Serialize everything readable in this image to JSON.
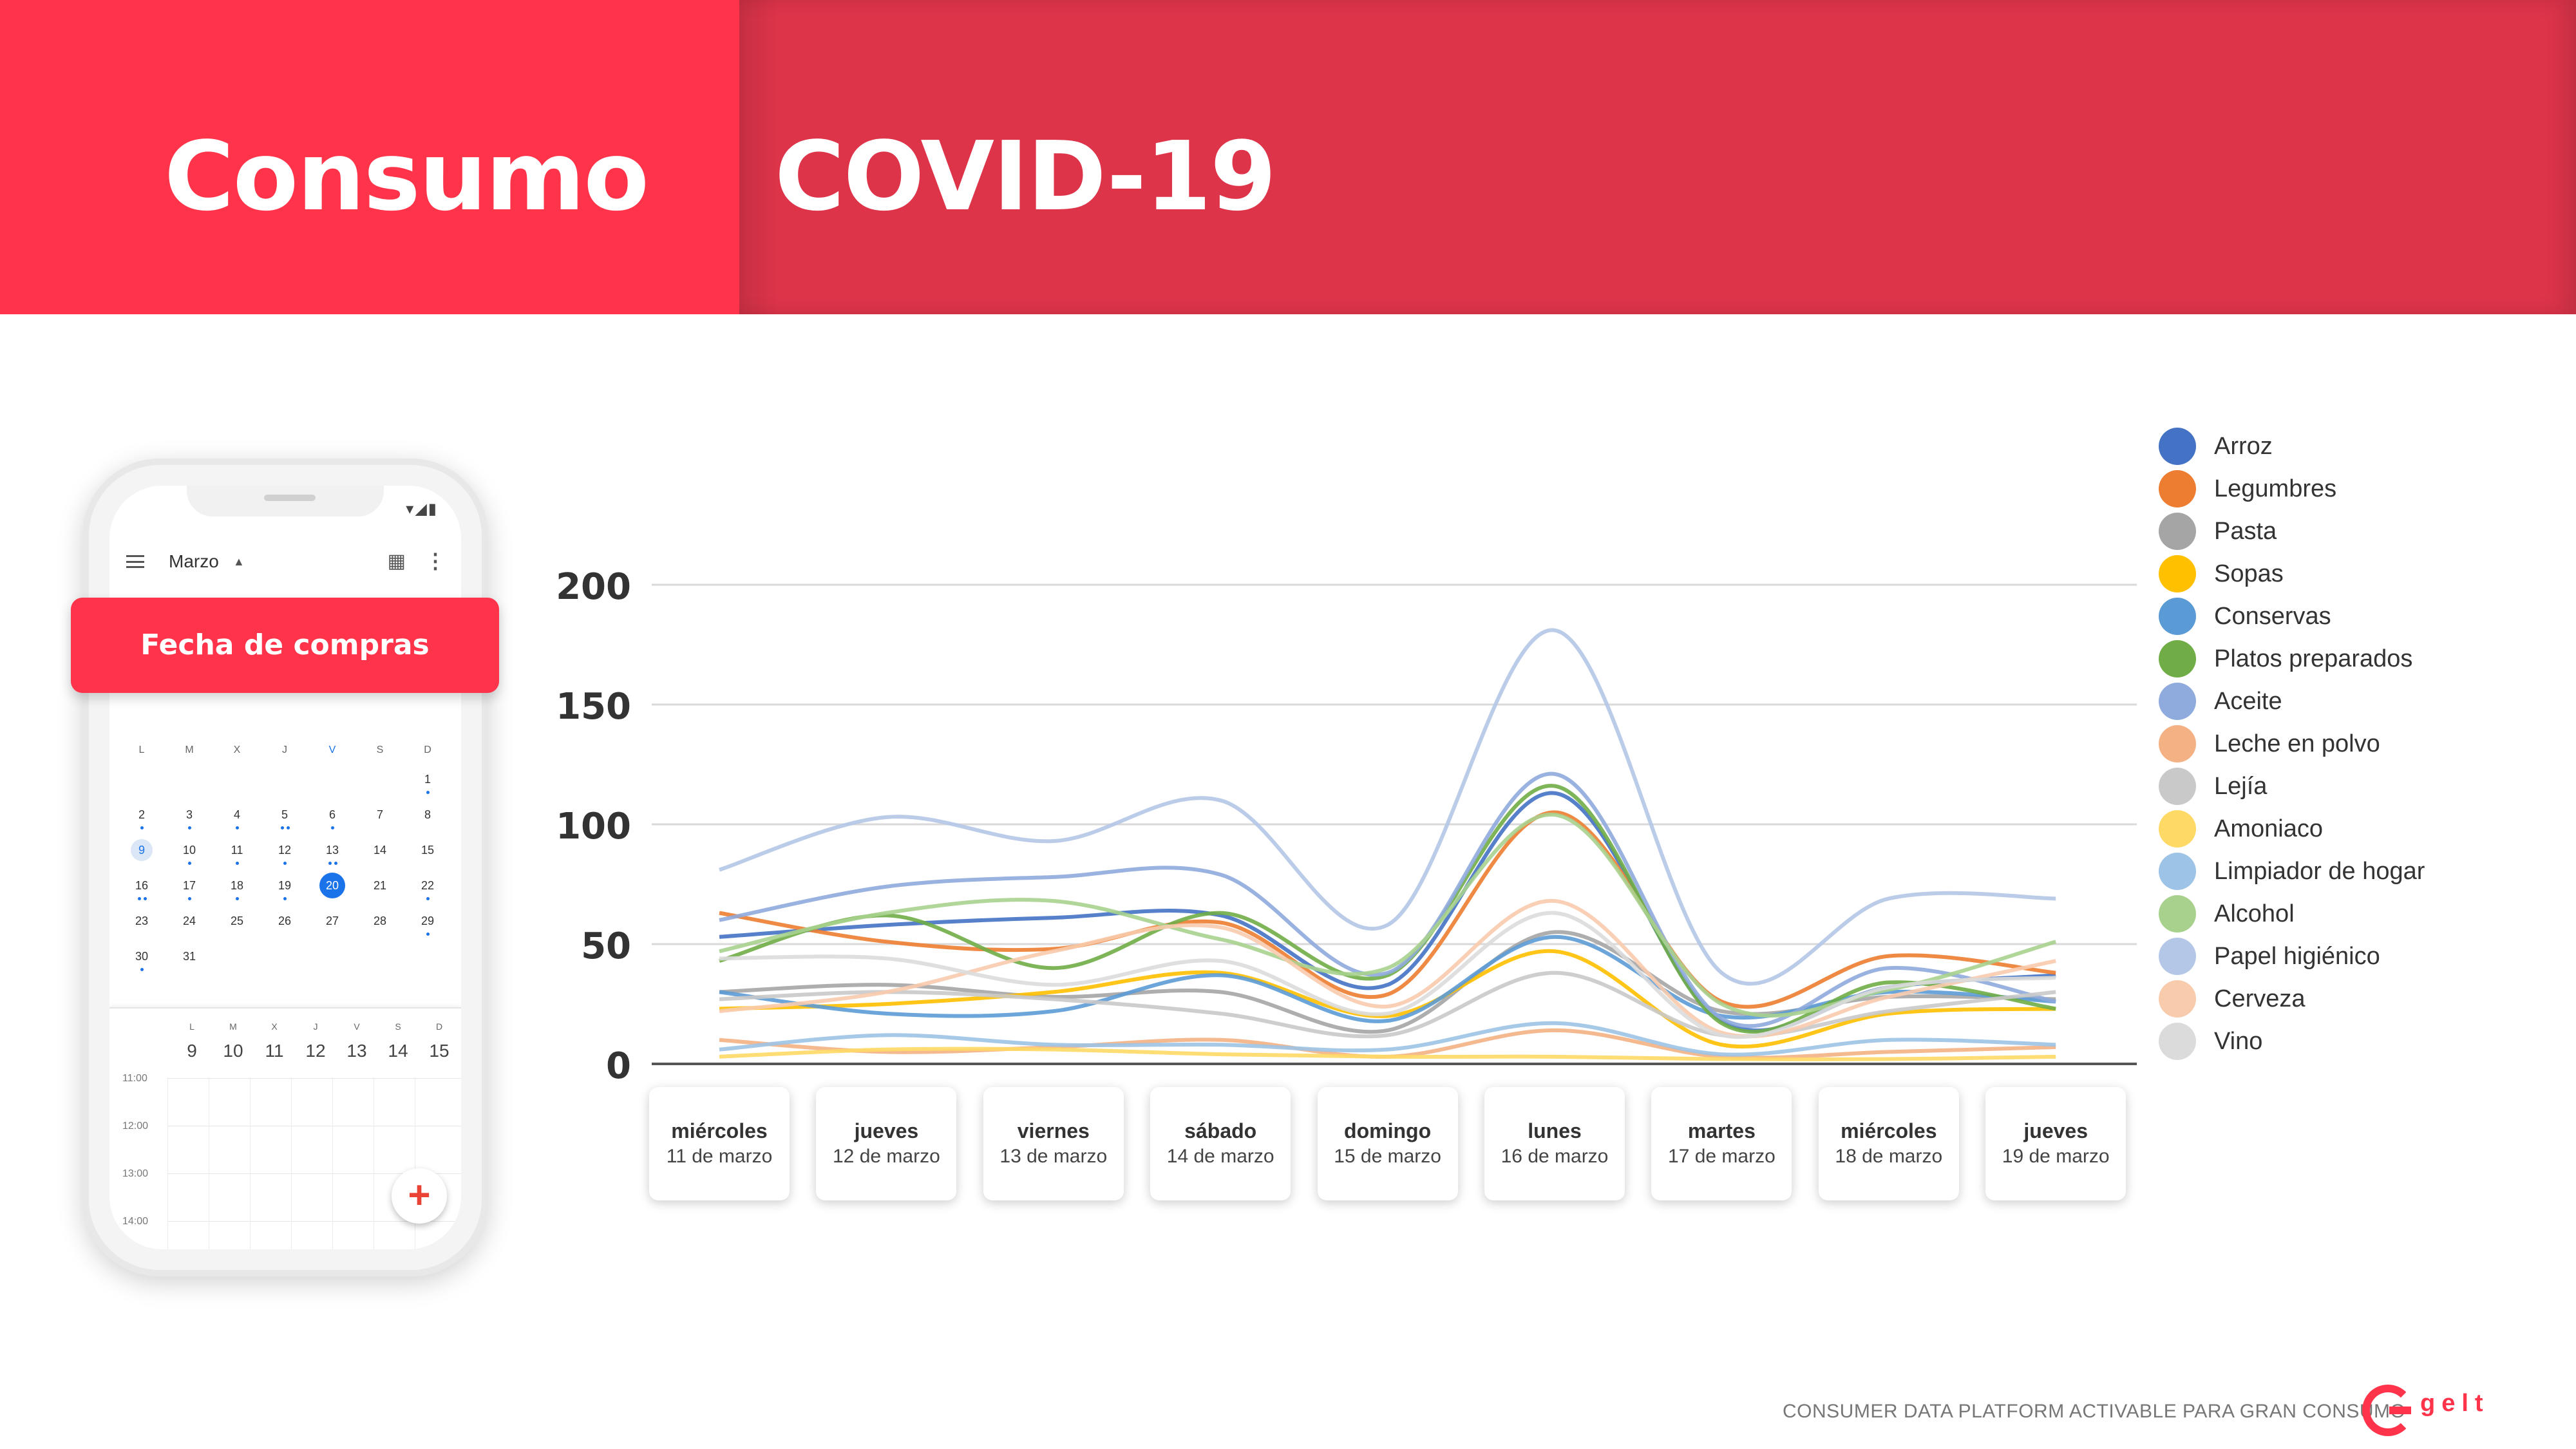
{
  "header": {
    "title_left": "Consumo",
    "title_right": "COVID-19"
  },
  "phone": {
    "month": "Marzo",
    "button_label": "Fecha de compras",
    "weekdays": [
      "L",
      "M",
      "X",
      "J",
      "V",
      "S",
      "D"
    ],
    "weeks": [
      [
        "",
        "",
        "",
        "",
        "",
        "",
        "1"
      ],
      [
        "2",
        "3",
        "4",
        "5",
        "6",
        "7",
        "8"
      ],
      [
        "9",
        "10",
        "11",
        "12",
        "13",
        "14",
        "15"
      ],
      [
        "16",
        "17",
        "18",
        "19",
        "20",
        "21",
        "22"
      ],
      [
        "23",
        "24",
        "25",
        "26",
        "27",
        "28",
        "29"
      ],
      [
        "30",
        "31",
        "",
        "",
        "",
        "",
        ""
      ]
    ],
    "today": "20",
    "selected": "9",
    "week_days": [
      "L",
      "M",
      "X",
      "J",
      "V",
      "S",
      "D"
    ],
    "week_nums": [
      "9",
      "10",
      "11",
      "12",
      "13",
      "14",
      "15"
    ],
    "times": [
      "11:00",
      "12:00",
      "13:00",
      "14:00"
    ]
  },
  "chart_data": {
    "type": "line",
    "ylim": [
      0,
      200
    ],
    "yticks": [
      "200",
      "150",
      "100",
      "50",
      "0"
    ],
    "grid": true,
    "legend_position": "right",
    "categories": [
      {
        "day": "miércoles",
        "date": "11 de marzo"
      },
      {
        "day": "jueves",
        "date": "12 de marzo"
      },
      {
        "day": "viernes",
        "date": "13 de marzo"
      },
      {
        "day": "sábado",
        "date": "14 de marzo"
      },
      {
        "day": "domingo",
        "date": "15 de marzo"
      },
      {
        "day": "lunes",
        "date": "16 de marzo"
      },
      {
        "day": "martes",
        "date": "17 de marzo"
      },
      {
        "day": "miércoles",
        "date": "18 de marzo"
      },
      {
        "day": "jueves",
        "date": "19 de marzo"
      }
    ],
    "series": [
      {
        "name": "Arroz",
        "color": "#4472c4",
        "values": [
          53,
          58,
          61,
          62,
          33,
          113,
          18,
          32,
          37
        ]
      },
      {
        "name": "Legumbres",
        "color": "#ed7d31",
        "values": [
          63,
          51,
          48,
          59,
          29,
          105,
          26,
          45,
          38
        ]
      },
      {
        "name": "Pasta",
        "color": "#a5a5a5",
        "values": [
          30,
          33,
          28,
          30,
          14,
          55,
          22,
          28,
          27
        ]
      },
      {
        "name": "Sopas",
        "color": "#ffc000",
        "values": [
          23,
          25,
          30,
          38,
          20,
          47,
          8,
          21,
          23
        ]
      },
      {
        "name": "Conservas",
        "color": "#5b9bd5",
        "values": [
          30,
          21,
          22,
          37,
          18,
          53,
          20,
          30,
          26
        ]
      },
      {
        "name": "Platos preparados",
        "color": "#70ad47",
        "values": [
          43,
          62,
          40,
          63,
          37,
          116,
          17,
          34,
          23
        ]
      },
      {
        "name": "Aceite",
        "color": "#8faadc",
        "values": [
          60,
          74,
          78,
          79,
          38,
          121,
          19,
          40,
          26
        ]
      },
      {
        "name": "Leche en polvo",
        "color": "#f4b183",
        "values": [
          10,
          5,
          7,
          10,
          3,
          14,
          3,
          5,
          7
        ]
      },
      {
        "name": "Lejía",
        "color": "#c9c9c9",
        "values": [
          27,
          30,
          27,
          21,
          12,
          38,
          12,
          22,
          30
        ]
      },
      {
        "name": "Amoniaco",
        "color": "#ffd966",
        "values": [
          3,
          6,
          6,
          4,
          3,
          3,
          2,
          2,
          3
        ]
      },
      {
        "name": "Limpiador de hogar",
        "color": "#9dc3e6",
        "values": [
          6,
          12,
          8,
          8,
          6,
          17,
          4,
          10,
          8
        ]
      },
      {
        "name": "Alcohol",
        "color": "#a9d18e",
        "values": [
          47,
          63,
          68,
          52,
          40,
          104,
          25,
          31,
          51
        ]
      },
      {
        "name": "Papel higiénico",
        "color": "#b4c7e7",
        "values": [
          81,
          103,
          93,
          110,
          58,
          181,
          38,
          69,
          69
        ]
      },
      {
        "name": "Cerveza",
        "color": "#f8cbad",
        "values": [
          22,
          30,
          47,
          57,
          24,
          68,
          13,
          28,
          43
        ]
      },
      {
        "name": "Vino",
        "color": "#dbdbdb",
        "values": [
          44,
          44,
          33,
          43,
          21,
          63,
          12,
          32,
          36
        ]
      }
    ]
  },
  "footer": {
    "tagline": "CONSUMER DATA PLATFORM ACTIVABLE PARA  GRAN CONSUMO",
    "logo_text": "gelt"
  }
}
